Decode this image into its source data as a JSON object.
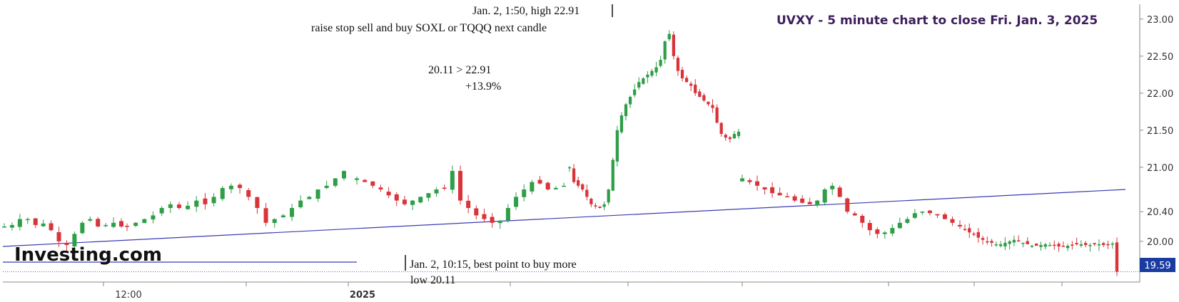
{
  "chart_data": {
    "type": "candlestick",
    "title": "UVXY - 5 minute chart to close Fri. Jan. 3, 2025",
    "y_ticks": [
      "23.00",
      "22.50",
      "22.00",
      "21.50",
      "21.00",
      "20.40",
      "20.00"
    ],
    "y_tick_values": [
      23.0,
      22.5,
      22.0,
      21.5,
      21.0,
      20.4,
      20.0
    ],
    "ylim": [
      19.45,
      23.2
    ],
    "x_ticks": [
      "12:00",
      "2025"
    ],
    "last_price": "19.59",
    "last_price_value": 19.59,
    "up_color": "#2e9e47",
    "down_color": "#d9343a",
    "trend_line_color": "#3b3bb3",
    "logo": "Investing.com",
    "annotations": [
      "Jan. 2, 1:50, high 22.91",
      "raise stop sell and buy SOXL or TQQQ next candle",
      "20.11 > 22.91",
      "+13.9%",
      "Jan. 2, 10:15, best point to buy more",
      "low 20.11"
    ],
    "segments": [
      {
        "n": 16,
        "values": [
          20.2,
          20.22,
          20.3,
          20.3,
          20.22,
          20.24,
          20.15,
          20.0,
          19.95,
          20.1,
          20.25,
          20.3,
          20.2,
          20.22,
          20.25,
          20.2
        ]
      },
      {
        "n": 26,
        "values": [
          20.2,
          20.25,
          20.3,
          20.35,
          20.45,
          20.5,
          20.45,
          20.48,
          20.55,
          20.5,
          20.6,
          20.72,
          20.75,
          20.72,
          20.6,
          20.45,
          20.25,
          20.3,
          20.35,
          20.45,
          20.55,
          20.6,
          20.7,
          20.75,
          20.85,
          20.95
        ]
      },
      {
        "n": 27,
        "values": [
          20.85,
          20.8,
          20.75,
          20.7,
          20.62,
          20.55,
          20.5,
          20.55,
          20.6,
          20.65,
          20.7,
          20.72,
          20.95,
          20.55,
          20.45,
          20.35,
          20.3,
          20.25,
          20.28,
          20.45,
          20.6,
          20.7,
          20.8,
          20.78,
          20.7,
          20.72,
          20.75
        ]
      },
      {
        "n": 40,
        "values": [
          21.0,
          20.8,
          20.75,
          20.7,
          20.6,
          20.5,
          20.48,
          20.45,
          20.5,
          20.7,
          21.1,
          21.5,
          21.7,
          21.85,
          21.95,
          22.05,
          22.15,
          22.2,
          22.25,
          22.3,
          22.35,
          22.45,
          22.7,
          22.8,
          22.5,
          22.3,
          22.2,
          22.15,
          22.1,
          22.0,
          21.95,
          21.9,
          21.85,
          21.8,
          21.6,
          21.45,
          21.4,
          21.38,
          21.45,
          21.48
        ]
      },
      {
        "n": 30,
        "values": [
          20.85,
          20.8,
          20.75,
          20.7,
          20.65,
          20.62,
          20.6,
          20.55,
          20.52,
          20.5,
          20.55,
          20.7,
          20.75,
          20.6,
          20.4,
          20.35,
          20.25,
          20.15,
          20.1,
          20.12,
          20.18,
          20.25,
          20.3,
          20.38,
          20.4,
          20.38,
          20.35,
          20.3,
          20.25,
          20.2
        ]
      },
      {
        "n": 35,
        "values": [
          20.15,
          20.12,
          20.1,
          20.05,
          20.02,
          20.0,
          19.98,
          19.96,
          19.96,
          19.98,
          20.0,
          20.02,
          20.0,
          19.98,
          19.96,
          19.94,
          19.94,
          19.95,
          19.96,
          19.95,
          19.94,
          19.93,
          19.93,
          19.94,
          19.95,
          19.96,
          19.96,
          19.95,
          19.95,
          19.96,
          19.96,
          19.95,
          19.96,
          19.97,
          19.59
        ]
      }
    ]
  }
}
